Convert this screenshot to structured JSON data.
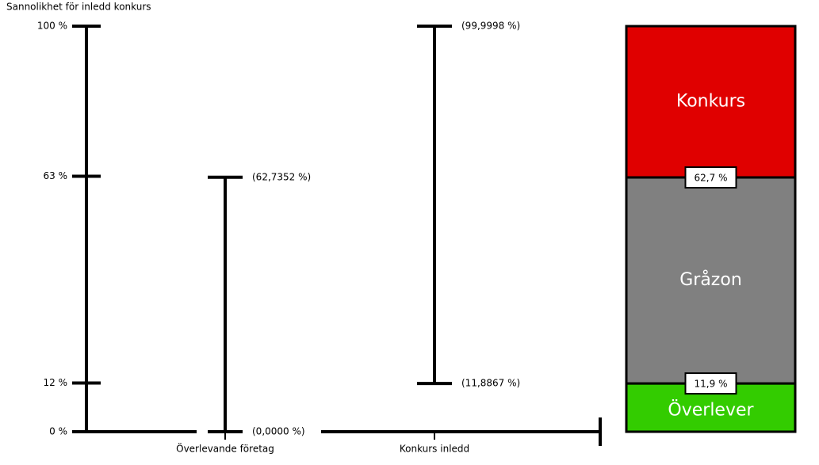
{
  "chart_data": {
    "type": "range",
    "y_label": "Sannolikhet för inledd konkurs",
    "ylim": [
      0,
      100
    ],
    "yticks": [
      {
        "value": 0,
        "label": "0 %"
      },
      {
        "value": 12,
        "label": "12 %"
      },
      {
        "value": 63,
        "label": "63 %"
      },
      {
        "value": 100,
        "label": "100 %"
      }
    ],
    "categories": [
      "Överlevande företag",
      "Konkurs inledd"
    ],
    "ranges": [
      {
        "low": {
          "value": 0,
          "label": "(0,0000 %)"
        },
        "high": {
          "value": 62.7352,
          "label": "(62,7352 %)"
        }
      },
      {
        "low": {
          "value": 11.8867,
          "label": "(11,8867 %)"
        },
        "high": {
          "value": 99.9998,
          "label": "(99,9998 %)"
        }
      }
    ],
    "zones": [
      {
        "name": "Överlever",
        "color": "#33cc00"
      },
      {
        "name": "Gråzon",
        "color": "#808080"
      },
      {
        "name": "Konkurs",
        "color": "#e00000"
      }
    ],
    "zone_edges": [
      {
        "value": 11.9,
        "label": "11,9 %"
      },
      {
        "value": 62.7,
        "label": "62,7 %"
      }
    ]
  }
}
